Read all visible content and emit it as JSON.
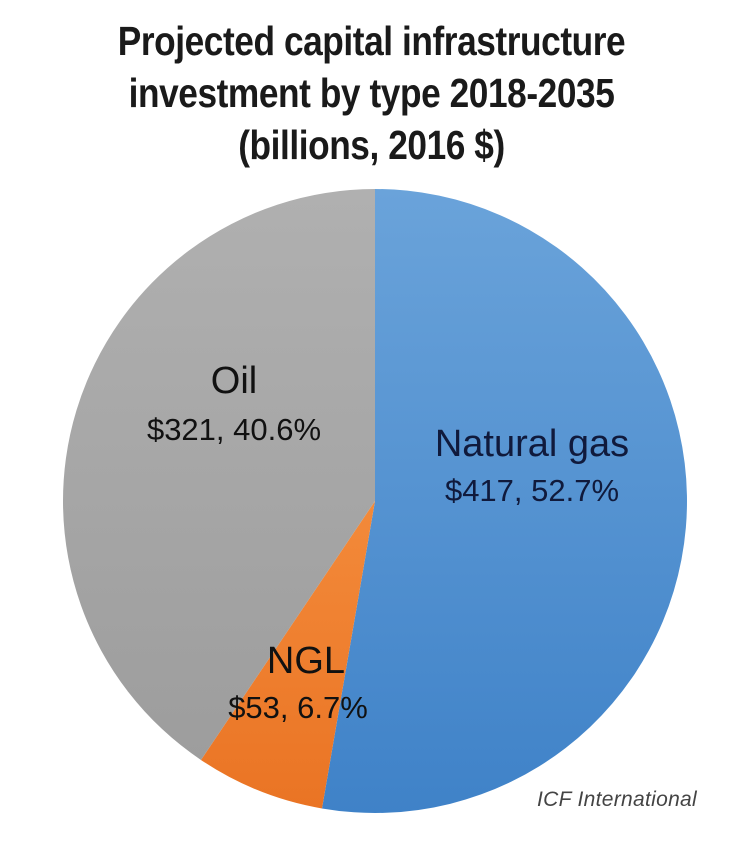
{
  "chart_data": {
    "type": "pie",
    "title_lines": [
      "Projected capital infrastructure",
      "investment by type 2018-2035",
      "(billions, 2016 $)"
    ],
    "slices": [
      {
        "label": "Natural gas",
        "value": 417,
        "value_text": "$417, 52.7%",
        "percent": 52.7,
        "color": "#4f8fd0"
      },
      {
        "label": "NGL",
        "value": 53,
        "value_text": "$53, 6.7%",
        "percent": 6.7,
        "color": "#f07f2e"
      },
      {
        "label": "Oil",
        "value": 321,
        "value_text": "$321, 40.6%",
        "percent": 40.6,
        "color": "#a9a9a9"
      }
    ],
    "start_angle": "12 o'clock",
    "direction": "clockwise",
    "legend": "none (labels inside slices)"
  },
  "source": "ICF International"
}
